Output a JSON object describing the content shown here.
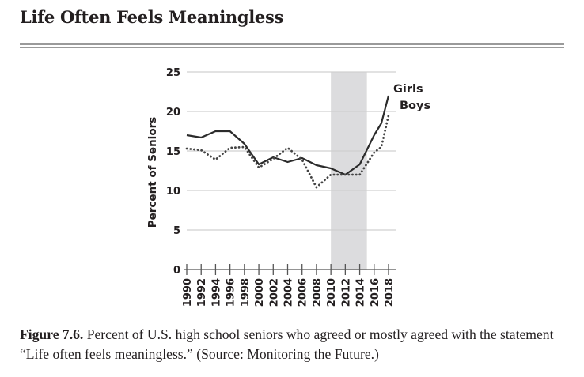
{
  "page": {
    "title": "Life Often Feels Meaningless",
    "caption_label": "Figure 7.6.",
    "caption_text": " Percent of U.S. high school seniors who agreed or mostly agreed with the statement “Life often feels meaningless.” (Source: Monitoring the Future.)"
  },
  "colors": {
    "solid_line": "#2b2b2b",
    "dotted_line": "#444444",
    "shade": "#dcdcde",
    "grid": "#d0d0d0",
    "axis": "#555555",
    "text": "#231f20"
  },
  "chart_data": {
    "type": "line",
    "title": "Life Often Feels Meaningless",
    "xlabel": "",
    "ylabel": "Percent of Seniors",
    "ylim": [
      0,
      25
    ],
    "xlim": [
      1990,
      2018
    ],
    "yticks": [
      0,
      5,
      10,
      15,
      20,
      25
    ],
    "xticks": [
      1990,
      1992,
      1994,
      1996,
      1998,
      2000,
      2002,
      2004,
      2006,
      2008,
      2010,
      2012,
      2014,
      2016,
      2018
    ],
    "grid": true,
    "shaded_region": {
      "x_start": 2010,
      "x_end": 2015
    },
    "legend": "top-right (inline labels)",
    "x": [
      1990,
      1992,
      1994,
      1996,
      1998,
      2000,
      2002,
      2004,
      2006,
      2008,
      2010,
      2012,
      2014,
      2016,
      2017,
      2018
    ],
    "series": [
      {
        "name": "Girls",
        "style": "solid",
        "values": [
          17.0,
          16.7,
          17.5,
          17.5,
          15.9,
          13.3,
          14.2,
          13.6,
          14.1,
          13.2,
          12.8,
          12.0,
          13.3,
          17.0,
          18.5,
          22.0
        ]
      },
      {
        "name": "Boys",
        "style": "dotted",
        "values": [
          15.3,
          15.1,
          13.9,
          15.4,
          15.5,
          12.9,
          14.0,
          15.4,
          13.9,
          10.4,
          12.0,
          12.0,
          12.0,
          14.8,
          15.5,
          19.5
        ]
      }
    ]
  }
}
